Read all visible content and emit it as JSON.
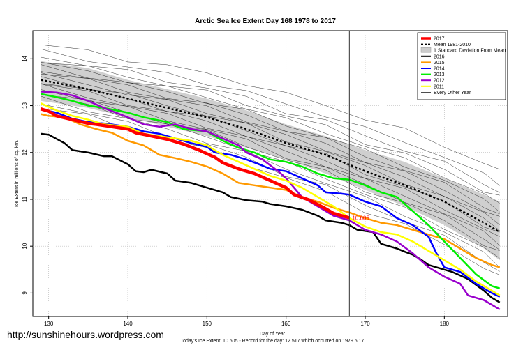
{
  "chart_data": {
    "type": "line",
    "title": "Arctic Sea Ice Extent Day 168 1978 to 2017",
    "xlabel": "Day of Year",
    "ylabel": "Ice Extent in millions of sq. km.",
    "xlim": [
      128.0,
      188.0
    ],
    "ylim": [
      8.5,
      14.6
    ],
    "xticks": [
      130,
      140,
      150,
      160,
      170,
      180
    ],
    "yticks": [
      9,
      10,
      11,
      12,
      13,
      14
    ],
    "grid": true,
    "vline_x": 168,
    "annotation": {
      "x": 168,
      "y": 10.605,
      "text": "10.605"
    },
    "legend_position": "top-right",
    "legend": [
      {
        "label": "2017",
        "color": "#ff0000",
        "style": "thick"
      },
      {
        "label": "Mean 1981-2010",
        "color": "#000000",
        "style": "dashed"
      },
      {
        "label": "1 Standard Deviation From Mean",
        "color": "#cccccc",
        "style": "band"
      },
      {
        "label": "2016",
        "color": "#000000",
        "style": "solid"
      },
      {
        "label": "2015",
        "color": "#ff9900",
        "style": "solid"
      },
      {
        "label": "2014",
        "color": "#0000ff",
        "style": "solid"
      },
      {
        "label": "2013",
        "color": "#00ee00",
        "style": "solid"
      },
      {
        "label": "2012",
        "color": "#9900cc",
        "style": "solid"
      },
      {
        "label": "2011",
        "color": "#ffff00",
        "style": "solid"
      },
      {
        "label": "Every Other Year",
        "color": "#000000",
        "style": "thin"
      }
    ],
    "mean": {
      "x": [
        129,
        135,
        140,
        145,
        150,
        155,
        160,
        165,
        170,
        175,
        180,
        185,
        187
      ],
      "values": [
        13.55,
        13.35,
        13.15,
        12.95,
        12.75,
        12.5,
        12.2,
        11.95,
        11.6,
        11.3,
        10.95,
        10.5,
        10.3
      ]
    },
    "sd_band": {
      "x": [
        129,
        135,
        140,
        145,
        150,
        155,
        160,
        165,
        170,
        175,
        180,
        185,
        187
      ],
      "upper": [
        13.95,
        13.8,
        13.55,
        13.35,
        13.15,
        12.9,
        12.6,
        12.35,
        12.05,
        11.8,
        11.45,
        11.1,
        10.95
      ],
      "lower": [
        13.1,
        12.95,
        12.75,
        12.55,
        12.35,
        12.1,
        11.85,
        11.55,
        11.2,
        10.85,
        10.45,
        9.95,
        9.7
      ]
    },
    "series": [
      {
        "name": "2016",
        "color": "#000000",
        "width": 2.5,
        "x": [
          129,
          130,
          132,
          133,
          135,
          137,
          138,
          140,
          141,
          142,
          143,
          145,
          146,
          148,
          150,
          152,
          153,
          155,
          157,
          158,
          160,
          162,
          164,
          165,
          167,
          168,
          169,
          171,
          172,
          174,
          175,
          176,
          177,
          178,
          179,
          180,
          181,
          183,
          185,
          186,
          187
        ],
        "values": [
          12.4,
          12.38,
          12.2,
          12.05,
          12.0,
          11.92,
          11.92,
          11.75,
          11.6,
          11.58,
          11.63,
          11.55,
          11.4,
          11.35,
          11.25,
          11.15,
          11.05,
          10.98,
          10.95,
          10.9,
          10.85,
          10.78,
          10.65,
          10.55,
          10.5,
          10.45,
          10.35,
          10.3,
          10.05,
          9.95,
          9.88,
          9.82,
          9.72,
          9.6,
          9.55,
          9.5,
          9.45,
          9.3,
          9.05,
          8.9,
          8.8
        ]
      },
      {
        "name": "2015",
        "color": "#ff9900",
        "width": 2.5,
        "x": [
          129,
          130,
          132,
          134,
          136,
          138,
          140,
          142,
          144,
          146,
          148,
          150,
          152,
          154,
          156,
          158,
          160,
          162,
          164,
          166,
          168,
          170,
          172,
          174,
          176,
          178,
          180,
          182,
          184,
          186,
          187
        ],
        "values": [
          12.82,
          12.78,
          12.75,
          12.6,
          12.5,
          12.42,
          12.25,
          12.15,
          11.95,
          11.88,
          11.8,
          11.7,
          11.55,
          11.35,
          11.3,
          11.25,
          11.2,
          11.05,
          10.95,
          10.82,
          10.72,
          10.6,
          10.5,
          10.45,
          10.35,
          10.25,
          10.15,
          9.95,
          9.75,
          9.6,
          9.55
        ]
      },
      {
        "name": "2014",
        "color": "#0000ff",
        "width": 2.5,
        "x": [
          129,
          131,
          133,
          135,
          137,
          140,
          142,
          144,
          146,
          148,
          150,
          151,
          153,
          155,
          157,
          158,
          160,
          162,
          164,
          165,
          167,
          168,
          170,
          172,
          174,
          176,
          178,
          179,
          180,
          182,
          184,
          186,
          187
        ],
        "values": [
          12.92,
          12.85,
          12.72,
          12.65,
          12.62,
          12.55,
          12.45,
          12.4,
          12.3,
          12.2,
          12.12,
          12.0,
          11.95,
          11.85,
          11.72,
          11.65,
          11.6,
          11.45,
          11.3,
          11.15,
          11.12,
          11.1,
          10.95,
          10.85,
          10.6,
          10.45,
          10.2,
          9.85,
          9.55,
          9.45,
          9.2,
          9.0,
          8.92
        ]
      },
      {
        "name": "2013",
        "color": "#00ee00",
        "width": 2.5,
        "x": [
          129,
          131,
          133,
          135,
          137,
          140,
          142,
          145,
          147,
          150,
          152,
          154,
          156,
          158,
          160,
          162,
          164,
          166,
          168,
          170,
          172,
          174,
          176,
          178,
          180,
          182,
          184,
          186,
          187
        ],
        "values": [
          13.25,
          13.18,
          13.1,
          13.0,
          12.95,
          12.85,
          12.75,
          12.65,
          12.5,
          12.45,
          12.25,
          12.1,
          12.0,
          11.85,
          11.8,
          11.7,
          11.55,
          11.45,
          11.42,
          11.3,
          11.15,
          11.05,
          10.75,
          10.45,
          10.1,
          9.75,
          9.4,
          9.15,
          9.1
        ]
      },
      {
        "name": "2012",
        "color": "#9900cc",
        "width": 2.5,
        "x": [
          129,
          131,
          133,
          135,
          137,
          140,
          142,
          144,
          146,
          148,
          150,
          152,
          154,
          155,
          157,
          159,
          160,
          162,
          164,
          166,
          168,
          170,
          172,
          174,
          176,
          178,
          180,
          182,
          183,
          185,
          187
        ],
        "values": [
          13.3,
          13.28,
          13.22,
          13.1,
          12.95,
          12.75,
          12.6,
          12.55,
          12.6,
          12.5,
          12.45,
          12.3,
          12.15,
          12.0,
          11.85,
          11.6,
          11.45,
          11.05,
          10.85,
          10.65,
          10.55,
          10.35,
          10.25,
          10.1,
          9.85,
          9.55,
          9.35,
          9.2,
          8.95,
          8.85,
          8.65
        ]
      },
      {
        "name": "2011",
        "color": "#ffff00",
        "width": 2.5,
        "x": [
          129,
          131,
          133,
          135,
          137,
          140,
          142,
          144,
          146,
          148,
          150,
          152,
          154,
          156,
          158,
          160,
          162,
          164,
          166,
          168,
          170,
          172,
          174,
          176,
          178,
          180,
          182,
          184,
          186,
          187
        ],
        "values": [
          13.05,
          12.9,
          12.78,
          12.7,
          12.6,
          12.55,
          12.4,
          12.35,
          12.3,
          12.25,
          12.15,
          11.95,
          11.8,
          11.65,
          11.5,
          11.4,
          11.25,
          11.05,
          10.85,
          10.6,
          10.42,
          10.3,
          10.25,
          10.1,
          9.9,
          9.7,
          9.5,
          9.25,
          9.05,
          8.95
        ]
      },
      {
        "name": "2017",
        "color": "#ff0000",
        "width": 4.5,
        "x": [
          129,
          130,
          131,
          133,
          135,
          136,
          138,
          140,
          141,
          143,
          145,
          147,
          149,
          151,
          152,
          154,
          156,
          158,
          160,
          161,
          163,
          165,
          166,
          168
        ],
        "values": [
          12.93,
          12.88,
          12.78,
          12.7,
          12.62,
          12.6,
          12.55,
          12.5,
          12.42,
          12.35,
          12.28,
          12.18,
          12.05,
          11.9,
          11.78,
          11.65,
          11.55,
          11.4,
          11.25,
          11.1,
          10.98,
          10.8,
          10.7,
          10.605
        ]
      }
    ]
  },
  "footer": {
    "xlabel": "Day of Year",
    "record_line": "Today's Ice Extent: 10.605  - Record for the day: 12.517 which occurred on 1979 6 17"
  },
  "watermark": "http://sunshinehours.wordpress.com"
}
